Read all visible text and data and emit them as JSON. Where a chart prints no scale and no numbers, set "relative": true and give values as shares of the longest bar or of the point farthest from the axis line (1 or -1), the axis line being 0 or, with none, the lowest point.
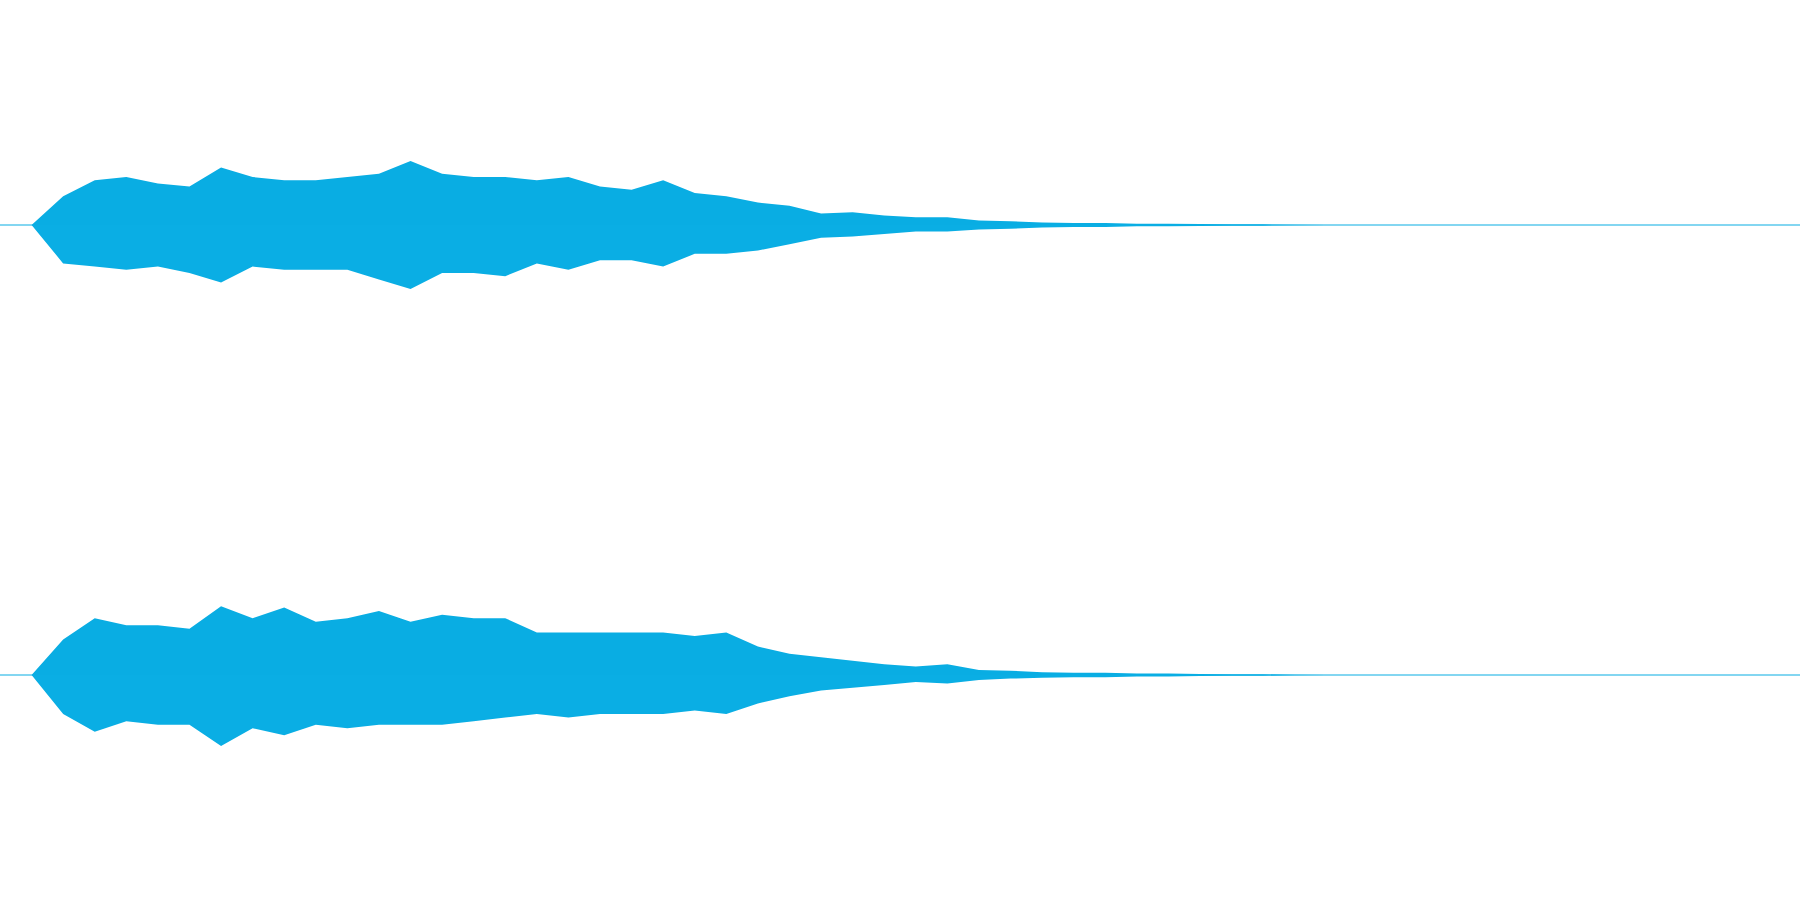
{
  "chart_data": [
    {
      "type": "area",
      "relative": true,
      "categories": [
        null,
        null,
        null,
        null,
        null,
        null,
        null,
        null,
        null,
        null,
        null,
        null,
        null,
        null,
        null,
        null,
        null,
        null,
        null,
        null,
        null,
        null,
        null,
        null,
        null,
        null,
        null,
        null,
        null,
        null,
        null,
        null,
        null,
        null,
        null,
        null,
        null,
        null,
        null,
        null,
        null,
        null,
        null,
        null,
        null,
        null,
        null,
        null,
        null,
        null,
        null,
        null,
        null,
        null,
        null,
        null,
        null,
        null
      ],
      "series": [
        {
          "color": "#09ade3",
          "values": [
            0,
            0,
            0.45,
            0.7,
            0.75,
            0.65,
            0.6,
            0.9,
            0.75,
            0.7,
            0.7,
            0.75,
            0.8,
            1,
            0.8,
            0.75,
            0.75,
            0.7,
            0.75,
            0.6,
            0.55,
            0.7,
            0.5,
            0.45,
            0.35,
            0.3,
            0.18,
            0.2,
            0.15,
            0.12,
            0.12,
            0.07,
            0.06,
            0.04,
            0.03,
            0.03,
            0.02,
            0.02,
            0.015,
            0.01,
            0.01,
            0.005,
            0,
            0,
            0,
            0,
            0,
            0,
            0,
            0,
            0,
            0,
            0,
            0,
            0,
            0,
            0,
            0
          ]
        },
        {
          "color": "#0aaee4",
          "values": [
            0,
            0,
            -0.6,
            -0.65,
            -0.7,
            -0.65,
            -0.75,
            -0.9,
            -0.65,
            -0.7,
            -0.7,
            -0.7,
            -0.85,
            -1,
            -0.75,
            -0.75,
            -0.8,
            -0.6,
            -0.7,
            -0.55,
            -0.55,
            -0.65,
            -0.45,
            -0.45,
            -0.4,
            -0.3,
            -0.2,
            -0.18,
            -0.14,
            -0.1,
            -0.1,
            -0.07,
            -0.06,
            -0.04,
            -0.03,
            -0.03,
            -0.02,
            -0.02,
            -0.015,
            -0.01,
            -0.01,
            -0.005,
            0,
            0,
            0,
            0,
            0,
            0,
            0,
            0,
            0,
            0,
            0,
            0,
            0,
            0,
            0,
            0
          ]
        }
      ]
    },
    {
      "type": "area",
      "relative": true,
      "categories": [
        null,
        null,
        null,
        null,
        null,
        null,
        null,
        null,
        null,
        null,
        null,
        null,
        null,
        null,
        null,
        null,
        null,
        null,
        null,
        null,
        null,
        null,
        null,
        null,
        null,
        null,
        null,
        null,
        null,
        null,
        null,
        null,
        null,
        null,
        null,
        null,
        null,
        null,
        null,
        null,
        null,
        null,
        null,
        null,
        null,
        null,
        null,
        null,
        null,
        null,
        null,
        null,
        null,
        null,
        null,
        null,
        null,
        null
      ],
      "series": [
        {
          "color": "#09ade3",
          "values": [
            0,
            0,
            0.5,
            0.8,
            0.7,
            0.7,
            0.65,
            0.97,
            0.8,
            0.95,
            0.75,
            0.8,
            0.9,
            0.75,
            0.85,
            0.8,
            0.8,
            0.6,
            0.6,
            0.6,
            0.6,
            0.6,
            0.55,
            0.6,
            0.4,
            0.3,
            0.25,
            0.2,
            0.15,
            0.12,
            0.15,
            0.07,
            0.06,
            0.04,
            0.03,
            0.03,
            0.02,
            0.02,
            0.015,
            0.01,
            0.01,
            0.005,
            0,
            0,
            0,
            0,
            0,
            0,
            0,
            0,
            0,
            0,
            0,
            0,
            0,
            0,
            0,
            0
          ]
        },
        {
          "color": "#0aaee4",
          "values": [
            0,
            0,
            -0.55,
            -0.8,
            -0.65,
            -0.7,
            -0.7,
            -1,
            -0.75,
            -0.85,
            -0.7,
            -0.75,
            -0.7,
            -0.7,
            -0.7,
            -0.65,
            -0.6,
            -0.55,
            -0.6,
            -0.55,
            -0.55,
            -0.55,
            -0.5,
            -0.55,
            -0.4,
            -0.3,
            -0.22,
            -0.18,
            -0.14,
            -0.1,
            -0.12,
            -0.07,
            -0.05,
            -0.04,
            -0.03,
            -0.03,
            -0.02,
            -0.02,
            -0.015,
            -0.01,
            -0.01,
            -0.005,
            0,
            0,
            0,
            0,
            0,
            0,
            0,
            0,
            0,
            0,
            0,
            0,
            0,
            0,
            0,
            0
          ]
        }
      ]
    }
  ]
}
